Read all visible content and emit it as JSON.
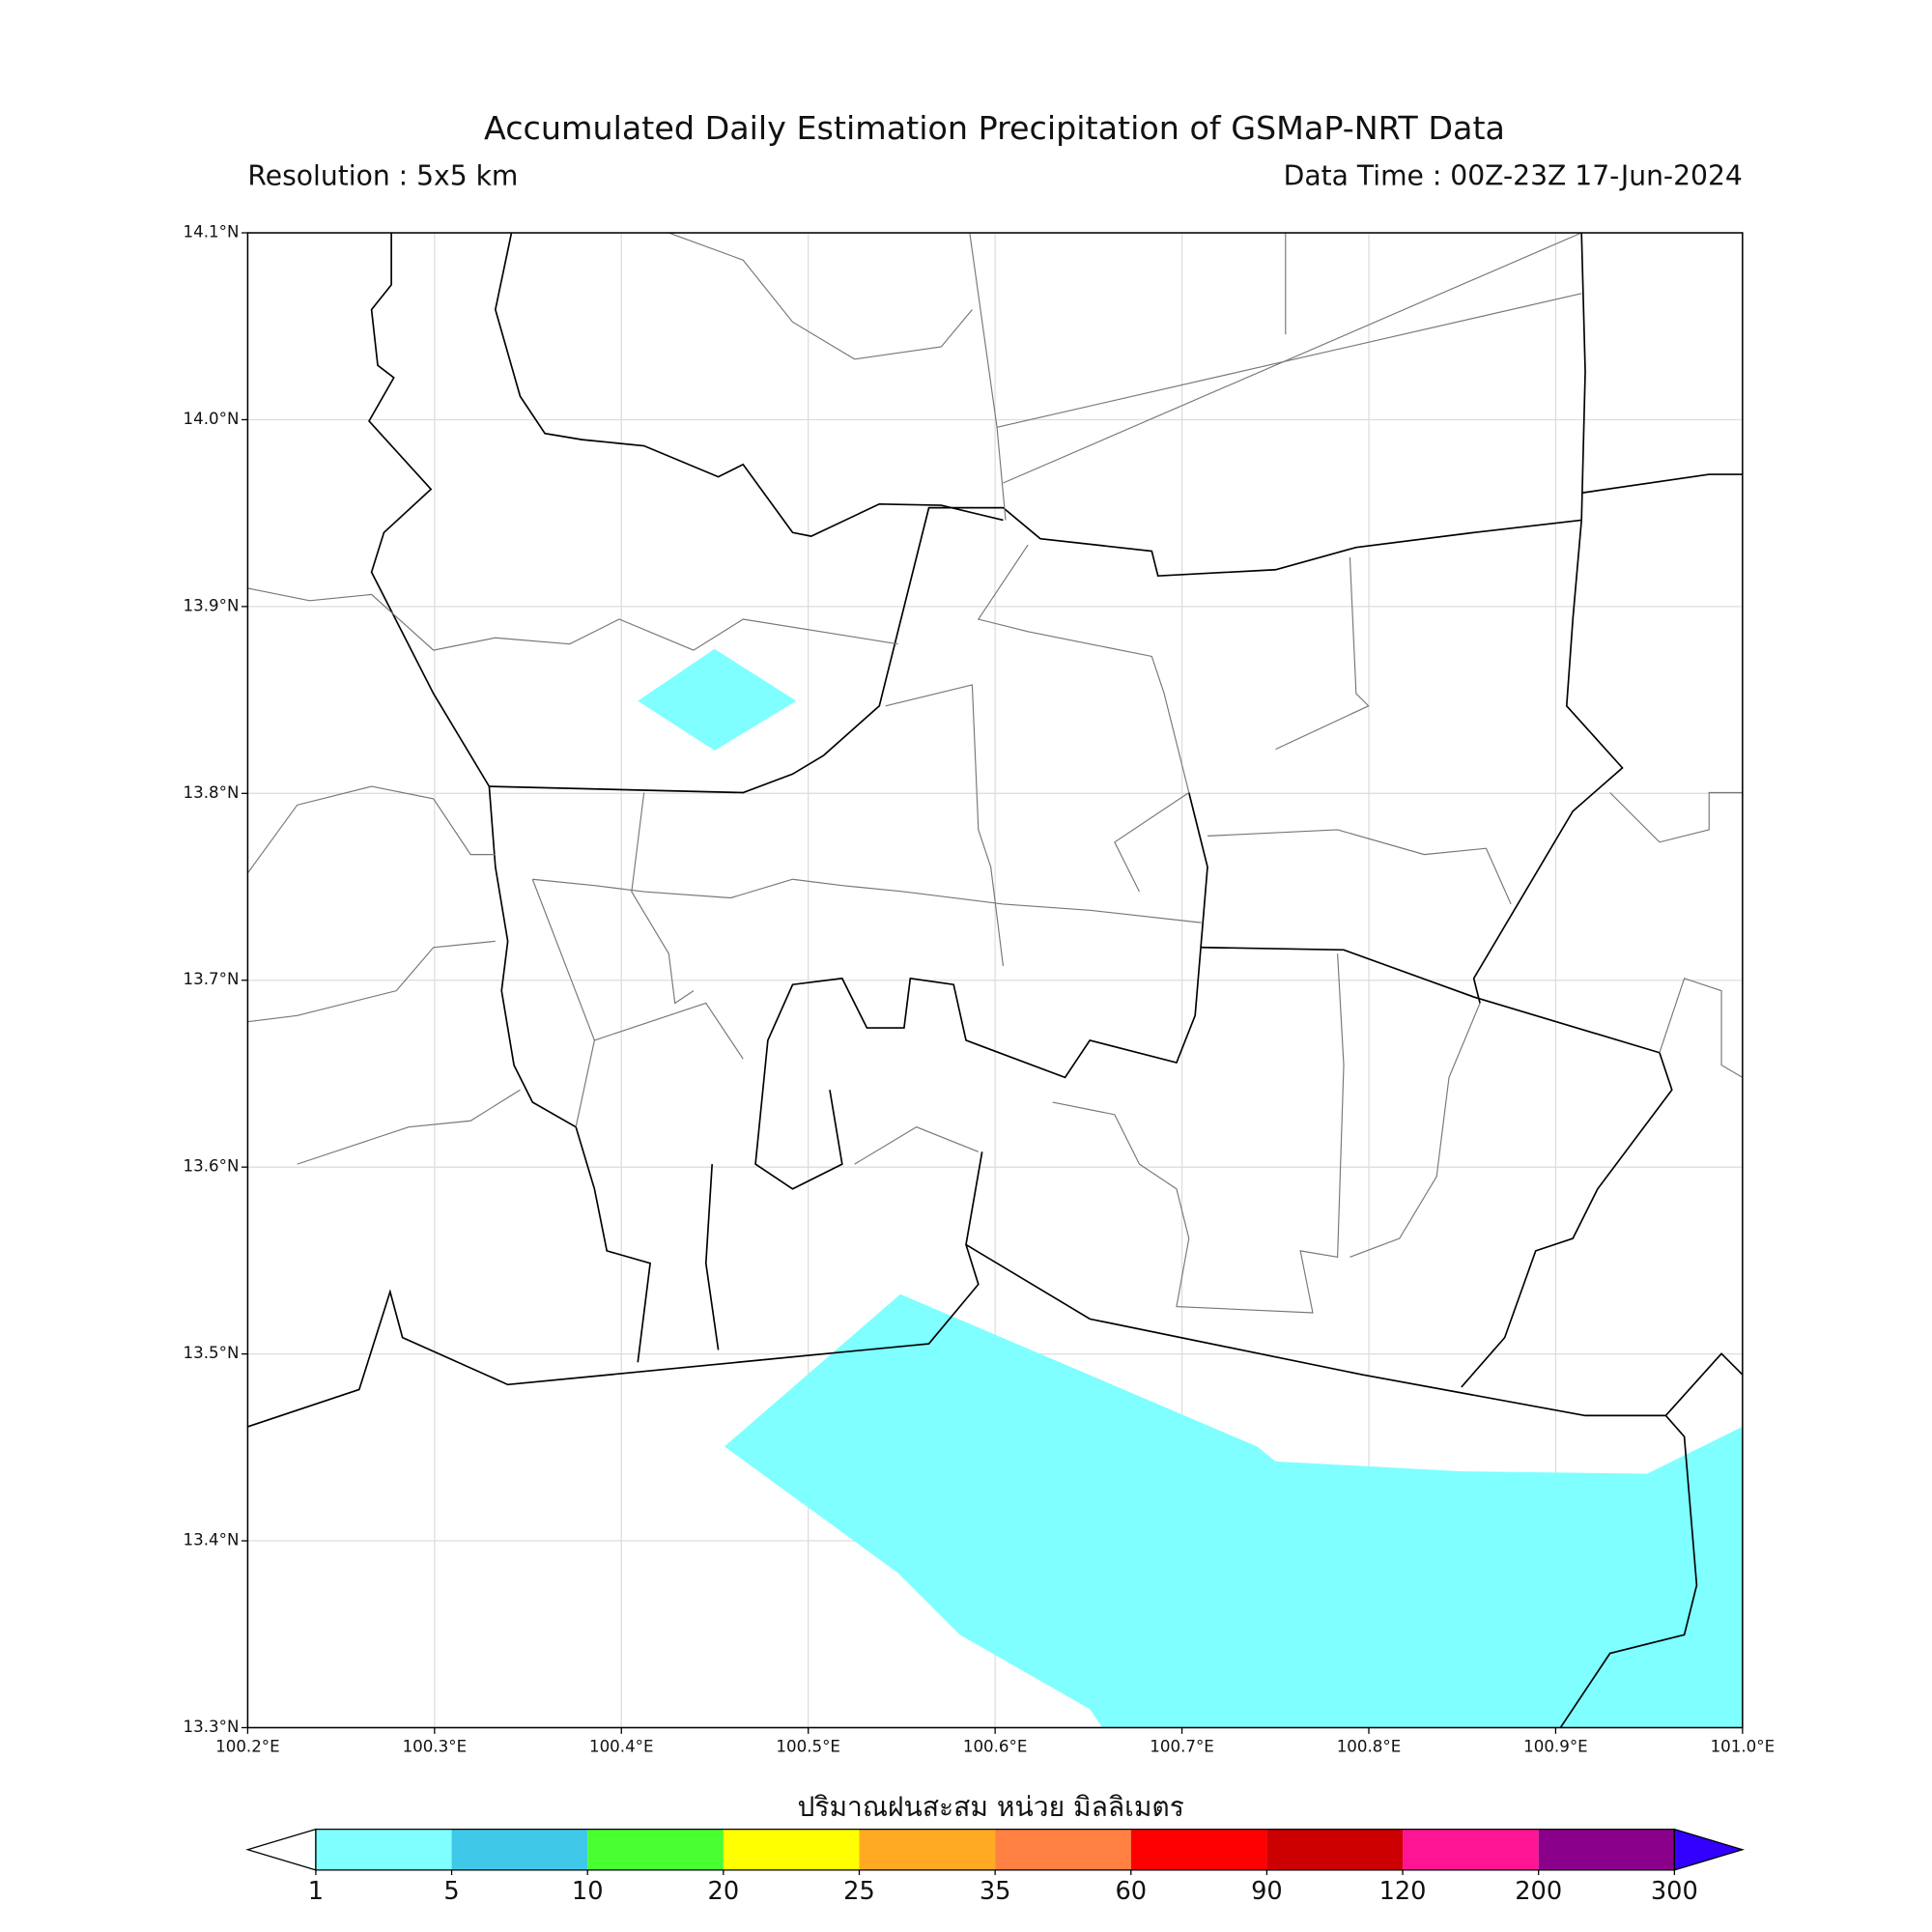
{
  "title": "Accumulated Daily Estimation Precipitation of GSMaP-NRT Data",
  "resolution": "Resolution : 5x5 km",
  "data_time": "Data Time : 00Z-23Z 17-Jun-2024",
  "map": {
    "xlim": [
      100.2,
      101.0
    ],
    "ylim": [
      13.3,
      14.1
    ],
    "xticks": [
      {
        "value": 100.2,
        "label": "100.2°E"
      },
      {
        "value": 100.3,
        "label": "100.3°E"
      },
      {
        "value": 100.4,
        "label": "100.4°E"
      },
      {
        "value": 100.5,
        "label": "100.5°E"
      },
      {
        "value": 100.6,
        "label": "100.6°E"
      },
      {
        "value": 100.7,
        "label": "100.7°E"
      },
      {
        "value": 100.8,
        "label": "100.8°E"
      },
      {
        "value": 100.9,
        "label": "100.9°E"
      },
      {
        "value": 101.0,
        "label": "101.0°E"
      }
    ],
    "yticks": [
      {
        "value": 13.3,
        "label": "13.3°N"
      },
      {
        "value": 13.4,
        "label": "13.4°N"
      },
      {
        "value": 13.5,
        "label": "13.5°N"
      },
      {
        "value": 13.6,
        "label": "13.6°N"
      },
      {
        "value": 13.7,
        "label": "13.7°N"
      },
      {
        "value": 13.8,
        "label": "13.8°N"
      },
      {
        "value": 13.9,
        "label": "13.9°N"
      },
      {
        "value": 14.0,
        "label": "14.0°N"
      },
      {
        "value": 14.1,
        "label": "14.1°N"
      }
    ],
    "grid": true
  },
  "colorbar": {
    "label": "ปริมาณฝนสะสม หน่วย มิลลิเมตร",
    "bounds": [
      1,
      5,
      10,
      20,
      25,
      35,
      60,
      90,
      120,
      200,
      300
    ],
    "colors": [
      "#7fffff",
      "#40c8e8",
      "#48ff30",
      "#ffff00",
      "#ffaa22",
      "#ff8040",
      "#ff0000",
      "#cc0000",
      "#ff1493",
      "#8b008b"
    ],
    "under_color": "#ffffff",
    "over_color": "#3300ff"
  }
}
